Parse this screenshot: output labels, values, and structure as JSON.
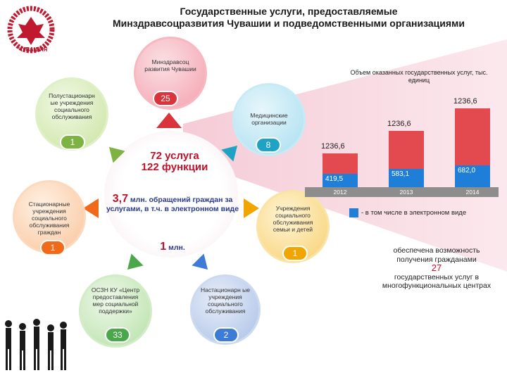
{
  "title": {
    "line1": "Государственные услуги, предоставляемые",
    "line2": "Минздравсоцразвития Чувашии и подведомственными организациями"
  },
  "logo": {
    "text": "ЧУВАШИЯ"
  },
  "center": {
    "services": "72 услуга",
    "functions": "122 функции",
    "requests_num": "3,7",
    "requests_text": "млн. обращений граждан за услугами, в т.ч. в электронном виде",
    "electronic_num": "1",
    "electronic_unit": "млн."
  },
  "nodes": [
    {
      "label": "Минздравсоц развития Чувашии",
      "count": "25"
    },
    {
      "label": "Медицинские организации",
      "count": "8"
    },
    {
      "label": "Учреждения социального обслуживания семьи и детей",
      "count": "1"
    },
    {
      "label": "Настационарн ые учреждения социального обслуживания",
      "count": "2"
    },
    {
      "label": "ОСЗН КУ «Центр предоставления мер социальной поддержки»",
      "count": "33"
    },
    {
      "label": "Стационарные учреждения социального обслуживания граждан",
      "count": "1"
    },
    {
      "label": "Полустационарн ые учреждения социального обслуживания",
      "count": "1"
    }
  ],
  "chart_data": {
    "type": "bar",
    "title": "Объем оказанных государственных услуг, тыс. единиц",
    "categories": [
      "2012",
      "2013",
      "2014"
    ],
    "series": [
      {
        "name": "total",
        "values": [
          1236.6,
          1236.6,
          1236.6
        ],
        "labels": [
          "1236,6",
          "1236,6",
          "1236,6"
        ]
      },
      {
        "name": "в том числе в электронном виде",
        "values": [
          419.5,
          583.1,
          682.0
        ],
        "labels": [
          "419,5",
          "583,1",
          "682,0"
        ]
      }
    ],
    "legend": "- в том числе в электронном виде",
    "colors": {
      "total": "#e24a4f",
      "electronic": "#1f7fd8"
    }
  },
  "info": {
    "line1": "обеспечена возможность получения гражданами",
    "number": "27",
    "line2": "государственных услуг в многофункциональных центрах"
  },
  "colors": {
    "accent": "#c0102a",
    "blue": "#2b3a8c"
  }
}
